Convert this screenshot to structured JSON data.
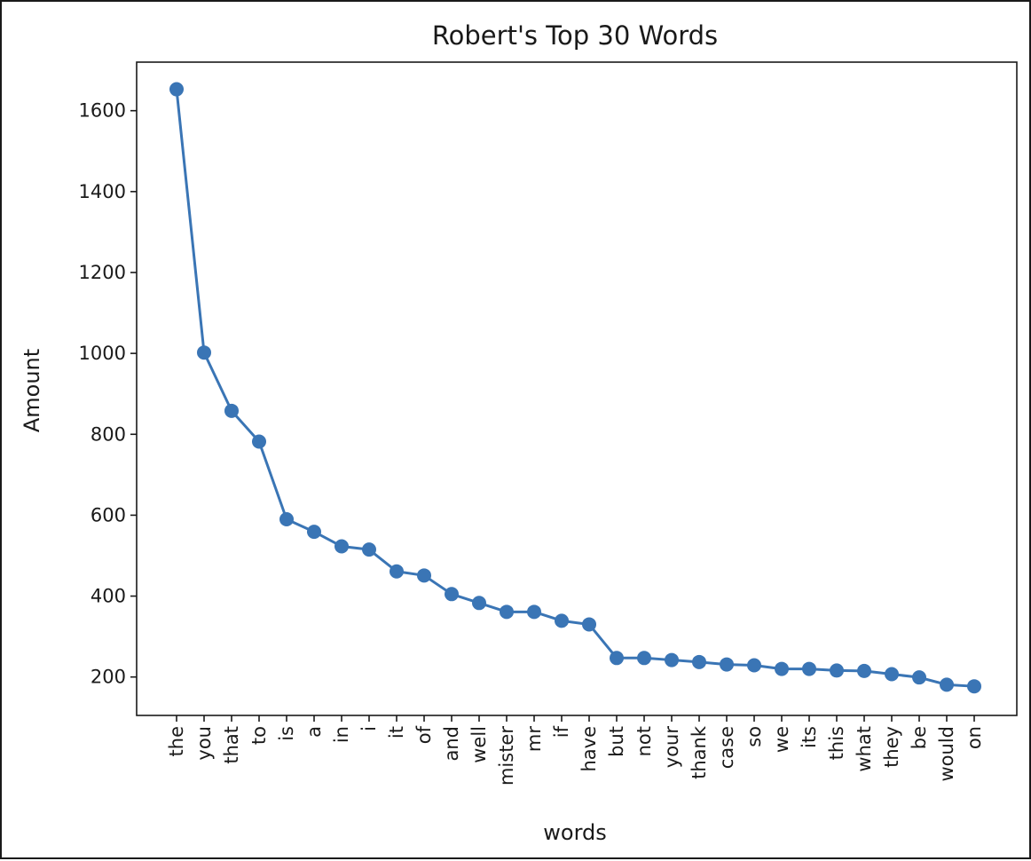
{
  "chart_data": {
    "type": "line",
    "title": "Robert's Top 30 Words",
    "xlabel": "words",
    "ylabel": "Amount",
    "ylim": [
      105,
      1720
    ],
    "yticks": [
      200,
      400,
      600,
      800,
      1000,
      1200,
      1400,
      1600
    ],
    "grid": false,
    "marker": "circle",
    "color": "#3a75b5",
    "categories": [
      "the",
      "you",
      "that",
      "to",
      "is",
      "a",
      "in",
      "i",
      "it",
      "of",
      "and",
      "well",
      "mister",
      "mr",
      "if",
      "have",
      "but",
      "not",
      "your",
      "thank",
      "case",
      "so",
      "we",
      "its",
      "this",
      "what",
      "they",
      "be",
      "would",
      "on"
    ],
    "values": [
      1653,
      1002,
      858,
      782,
      590,
      559,
      523,
      515,
      461,
      451,
      405,
      383,
      361,
      361,
      339,
      330,
      247,
      247,
      242,
      237,
      231,
      229,
      220,
      220,
      216,
      215,
      207,
      199,
      181,
      177
    ]
  }
}
